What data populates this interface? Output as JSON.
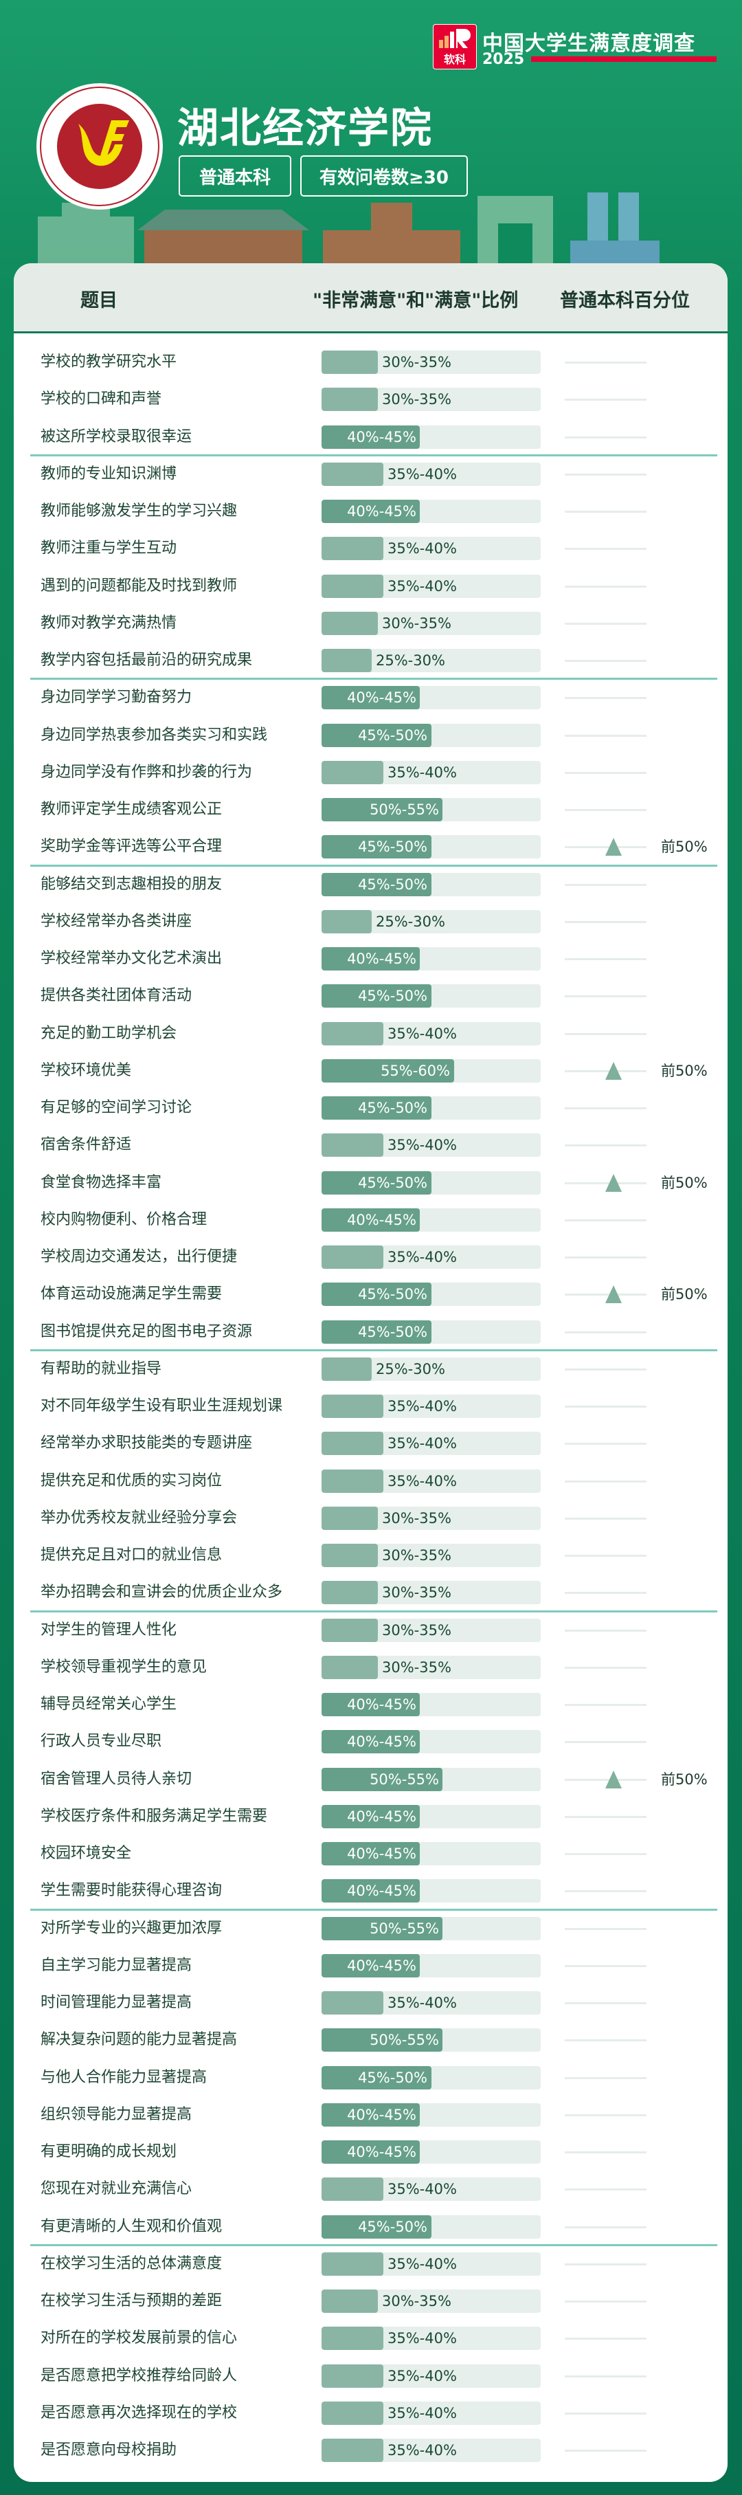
{
  "brand": {
    "name": "软科",
    "survey_title": "中国大学生满意度调查",
    "year": "2025",
    "accent": "#e60033"
  },
  "school": {
    "name": "湖北经济学院",
    "logo_text": "HUBEI UNIVERSITY OF ECONOMICS 湖北经济学院"
  },
  "tags": [
    "普通本科",
    "有效问卷数≥30"
  ],
  "table": {
    "headers": {
      "item": "题目",
      "ratio": "\"非常满意\"和\"满意\"比例",
      "percentile": "普通本科百分位"
    },
    "colors": {
      "dark_fill": "#66a08a",
      "light_fill": "#8ab5a5",
      "track": "#e6efeb",
      "marker": "#7fb09c",
      "separator": "#7ecbbd"
    },
    "groups": [
      {
        "rows": [
          {
            "label": "学校的教学研究水平",
            "range": "30%-35%",
            "percentile": ""
          },
          {
            "label": "学校的口碑和声誉",
            "range": "30%-35%",
            "percentile": ""
          },
          {
            "label": "被这所学校录取很幸运",
            "range": "40%-45%",
            "percentile": ""
          }
        ]
      },
      {
        "rows": [
          {
            "label": "教师的专业知识渊博",
            "range": "35%-40%",
            "percentile": ""
          },
          {
            "label": "教师能够激发学生的学习兴趣",
            "range": "40%-45%",
            "percentile": ""
          },
          {
            "label": "教师注重与学生互动",
            "range": "35%-40%",
            "percentile": ""
          },
          {
            "label": "遇到的问题都能及时找到教师",
            "range": "35%-40%",
            "percentile": ""
          },
          {
            "label": "教师对教学充满热情",
            "range": "30%-35%",
            "percentile": ""
          },
          {
            "label": "教学内容包括最前沿的研究成果",
            "range": "25%-30%",
            "percentile": ""
          }
        ]
      },
      {
        "rows": [
          {
            "label": "身边同学学习勤奋努力",
            "range": "40%-45%",
            "percentile": ""
          },
          {
            "label": "身边同学热衷参加各类实习和实践",
            "range": "45%-50%",
            "percentile": ""
          },
          {
            "label": "身边同学没有作弊和抄袭的行为",
            "range": "35%-40%",
            "percentile": ""
          },
          {
            "label": "教师评定学生成绩客观公正",
            "range": "50%-55%",
            "percentile": ""
          },
          {
            "label": "奖助学金等评选等公平合理",
            "range": "45%-50%",
            "percentile": "前50%"
          }
        ]
      },
      {
        "rows": [
          {
            "label": "能够结交到志趣相投的朋友",
            "range": "45%-50%",
            "percentile": ""
          },
          {
            "label": "学校经常举办各类讲座",
            "range": "25%-30%",
            "percentile": ""
          },
          {
            "label": "学校经常举办文化艺术演出",
            "range": "40%-45%",
            "percentile": ""
          },
          {
            "label": "提供各类社团体育活动",
            "range": "45%-50%",
            "percentile": ""
          },
          {
            "label": "充足的勤工助学机会",
            "range": "35%-40%",
            "percentile": ""
          },
          {
            "label": "学校环境优美",
            "range": "55%-60%",
            "percentile": "前50%"
          },
          {
            "label": "有足够的空间学习讨论",
            "range": "45%-50%",
            "percentile": ""
          },
          {
            "label": "宿舍条件舒适",
            "range": "35%-40%",
            "percentile": ""
          },
          {
            "label": "食堂食物选择丰富",
            "range": "45%-50%",
            "percentile": "前50%"
          },
          {
            "label": "校内购物便利、价格合理",
            "range": "40%-45%",
            "percentile": ""
          },
          {
            "label": "学校周边交通发达，出行便捷",
            "range": "35%-40%",
            "percentile": ""
          },
          {
            "label": "体育运动设施满足学生需要",
            "range": "45%-50%",
            "percentile": "前50%"
          },
          {
            "label": "图书馆提供充足的图书电子资源",
            "range": "45%-50%",
            "percentile": ""
          }
        ]
      },
      {
        "rows": [
          {
            "label": "有帮助的就业指导",
            "range": "25%-30%",
            "percentile": ""
          },
          {
            "label": "对不同年级学生设有职业生涯规划课",
            "range": "35%-40%",
            "percentile": ""
          },
          {
            "label": "经常举办求职技能类的专题讲座",
            "range": "35%-40%",
            "percentile": ""
          },
          {
            "label": "提供充足和优质的实习岗位",
            "range": "35%-40%",
            "percentile": ""
          },
          {
            "label": "举办优秀校友就业经验分享会",
            "range": "30%-35%",
            "percentile": ""
          },
          {
            "label": "提供充足且对口的就业信息",
            "range": "30%-35%",
            "percentile": ""
          },
          {
            "label": "举办招聘会和宣讲会的优质企业众多",
            "range": "30%-35%",
            "percentile": ""
          }
        ]
      },
      {
        "rows": [
          {
            "label": "对学生的管理人性化",
            "range": "30%-35%",
            "percentile": ""
          },
          {
            "label": "学校领导重视学生的意见",
            "range": "30%-35%",
            "percentile": ""
          },
          {
            "label": "辅导员经常关心学生",
            "range": "40%-45%",
            "percentile": ""
          },
          {
            "label": "行政人员专业尽职",
            "range": "40%-45%",
            "percentile": ""
          },
          {
            "label": "宿舍管理人员待人亲切",
            "range": "50%-55%",
            "percentile": "前50%"
          },
          {
            "label": "学校医疗条件和服务满足学生需要",
            "range": "40%-45%",
            "percentile": ""
          },
          {
            "label": "校园环境安全",
            "range": "40%-45%",
            "percentile": ""
          },
          {
            "label": "学生需要时能获得心理咨询",
            "range": "40%-45%",
            "percentile": ""
          }
        ]
      },
      {
        "rows": [
          {
            "label": "对所学专业的兴趣更加浓厚",
            "range": "50%-55%",
            "percentile": ""
          },
          {
            "label": "自主学习能力显著提高",
            "range": "40%-45%",
            "percentile": ""
          },
          {
            "label": "时间管理能力显著提高",
            "range": "35%-40%",
            "percentile": ""
          },
          {
            "label": "解决复杂问题的能力显著提高",
            "range": "50%-55%",
            "percentile": ""
          },
          {
            "label": "与他人合作能力显著提高",
            "range": "45%-50%",
            "percentile": ""
          },
          {
            "label": "组织领导能力显著提高",
            "range": "40%-45%",
            "percentile": ""
          },
          {
            "label": "有更明确的成长规划",
            "range": "40%-45%",
            "percentile": ""
          },
          {
            "label": "您现在对就业充满信心",
            "range": "35%-40%",
            "percentile": ""
          },
          {
            "label": "有更清晰的人生观和价值观",
            "range": "45%-50%",
            "percentile": ""
          }
        ]
      },
      {
        "rows": [
          {
            "label": "在校学习生活的总体满意度",
            "range": "35%-40%",
            "percentile": ""
          },
          {
            "label": "在校学习生活与预期的差距",
            "range": "30%-35%",
            "percentile": ""
          },
          {
            "label": "对所在的学校发展前景的信心",
            "range": "35%-40%",
            "percentile": ""
          },
          {
            "label": "是否愿意把学校推荐给同龄人",
            "range": "35%-40%",
            "percentile": ""
          },
          {
            "label": "是否愿意再次选择现在的学校",
            "range": "35%-40%",
            "percentile": ""
          },
          {
            "label": "是否愿意向母校捐助",
            "range": "35%-40%",
            "percentile": ""
          }
        ]
      }
    ]
  }
}
